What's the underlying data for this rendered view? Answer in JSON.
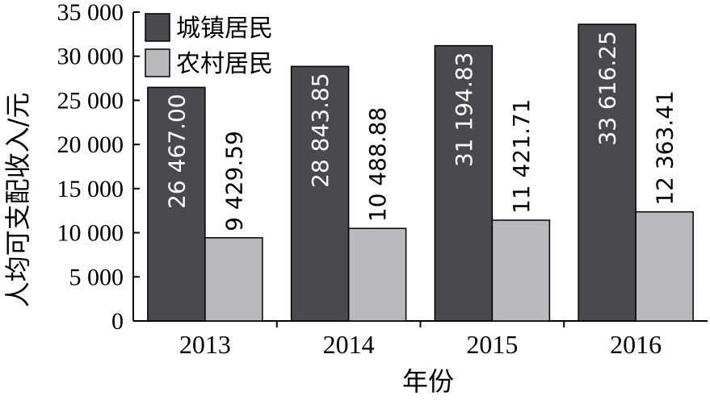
{
  "chart_data": {
    "type": "bar",
    "title": "",
    "xlabel": "年份",
    "ylabel": "人均可支配收入/元",
    "categories": [
      "2013",
      "2014",
      "2015",
      "2016"
    ],
    "ylim": [
      0,
      35000
    ],
    "yticks": [
      0,
      5000,
      10000,
      15000,
      20000,
      25000,
      30000,
      35000
    ],
    "ytick_labels": [
      "0",
      "5 000",
      "10 000",
      "15 000",
      "20 000",
      "25 000",
      "30 000",
      "35 000"
    ],
    "legend_position": "top-left",
    "grid": false,
    "series": [
      {
        "name": "城镇居民",
        "values": [
          26467.0,
          28843.85,
          31194.83,
          33616.25
        ],
        "labels": [
          "26 467.00",
          "28 843.85",
          "31 194.83",
          "33 616.25"
        ],
        "color": "#4a4a4e",
        "label_color": "#ffffff"
      },
      {
        "name": "农村居民",
        "values": [
          9429.59,
          10488.88,
          11421.71,
          12363.41
        ],
        "labels": [
          "9 429.59",
          "10 488.88",
          "11 421.71",
          "12 363.41"
        ],
        "color": "#b9b9bc",
        "label_color": "#000000"
      }
    ]
  }
}
